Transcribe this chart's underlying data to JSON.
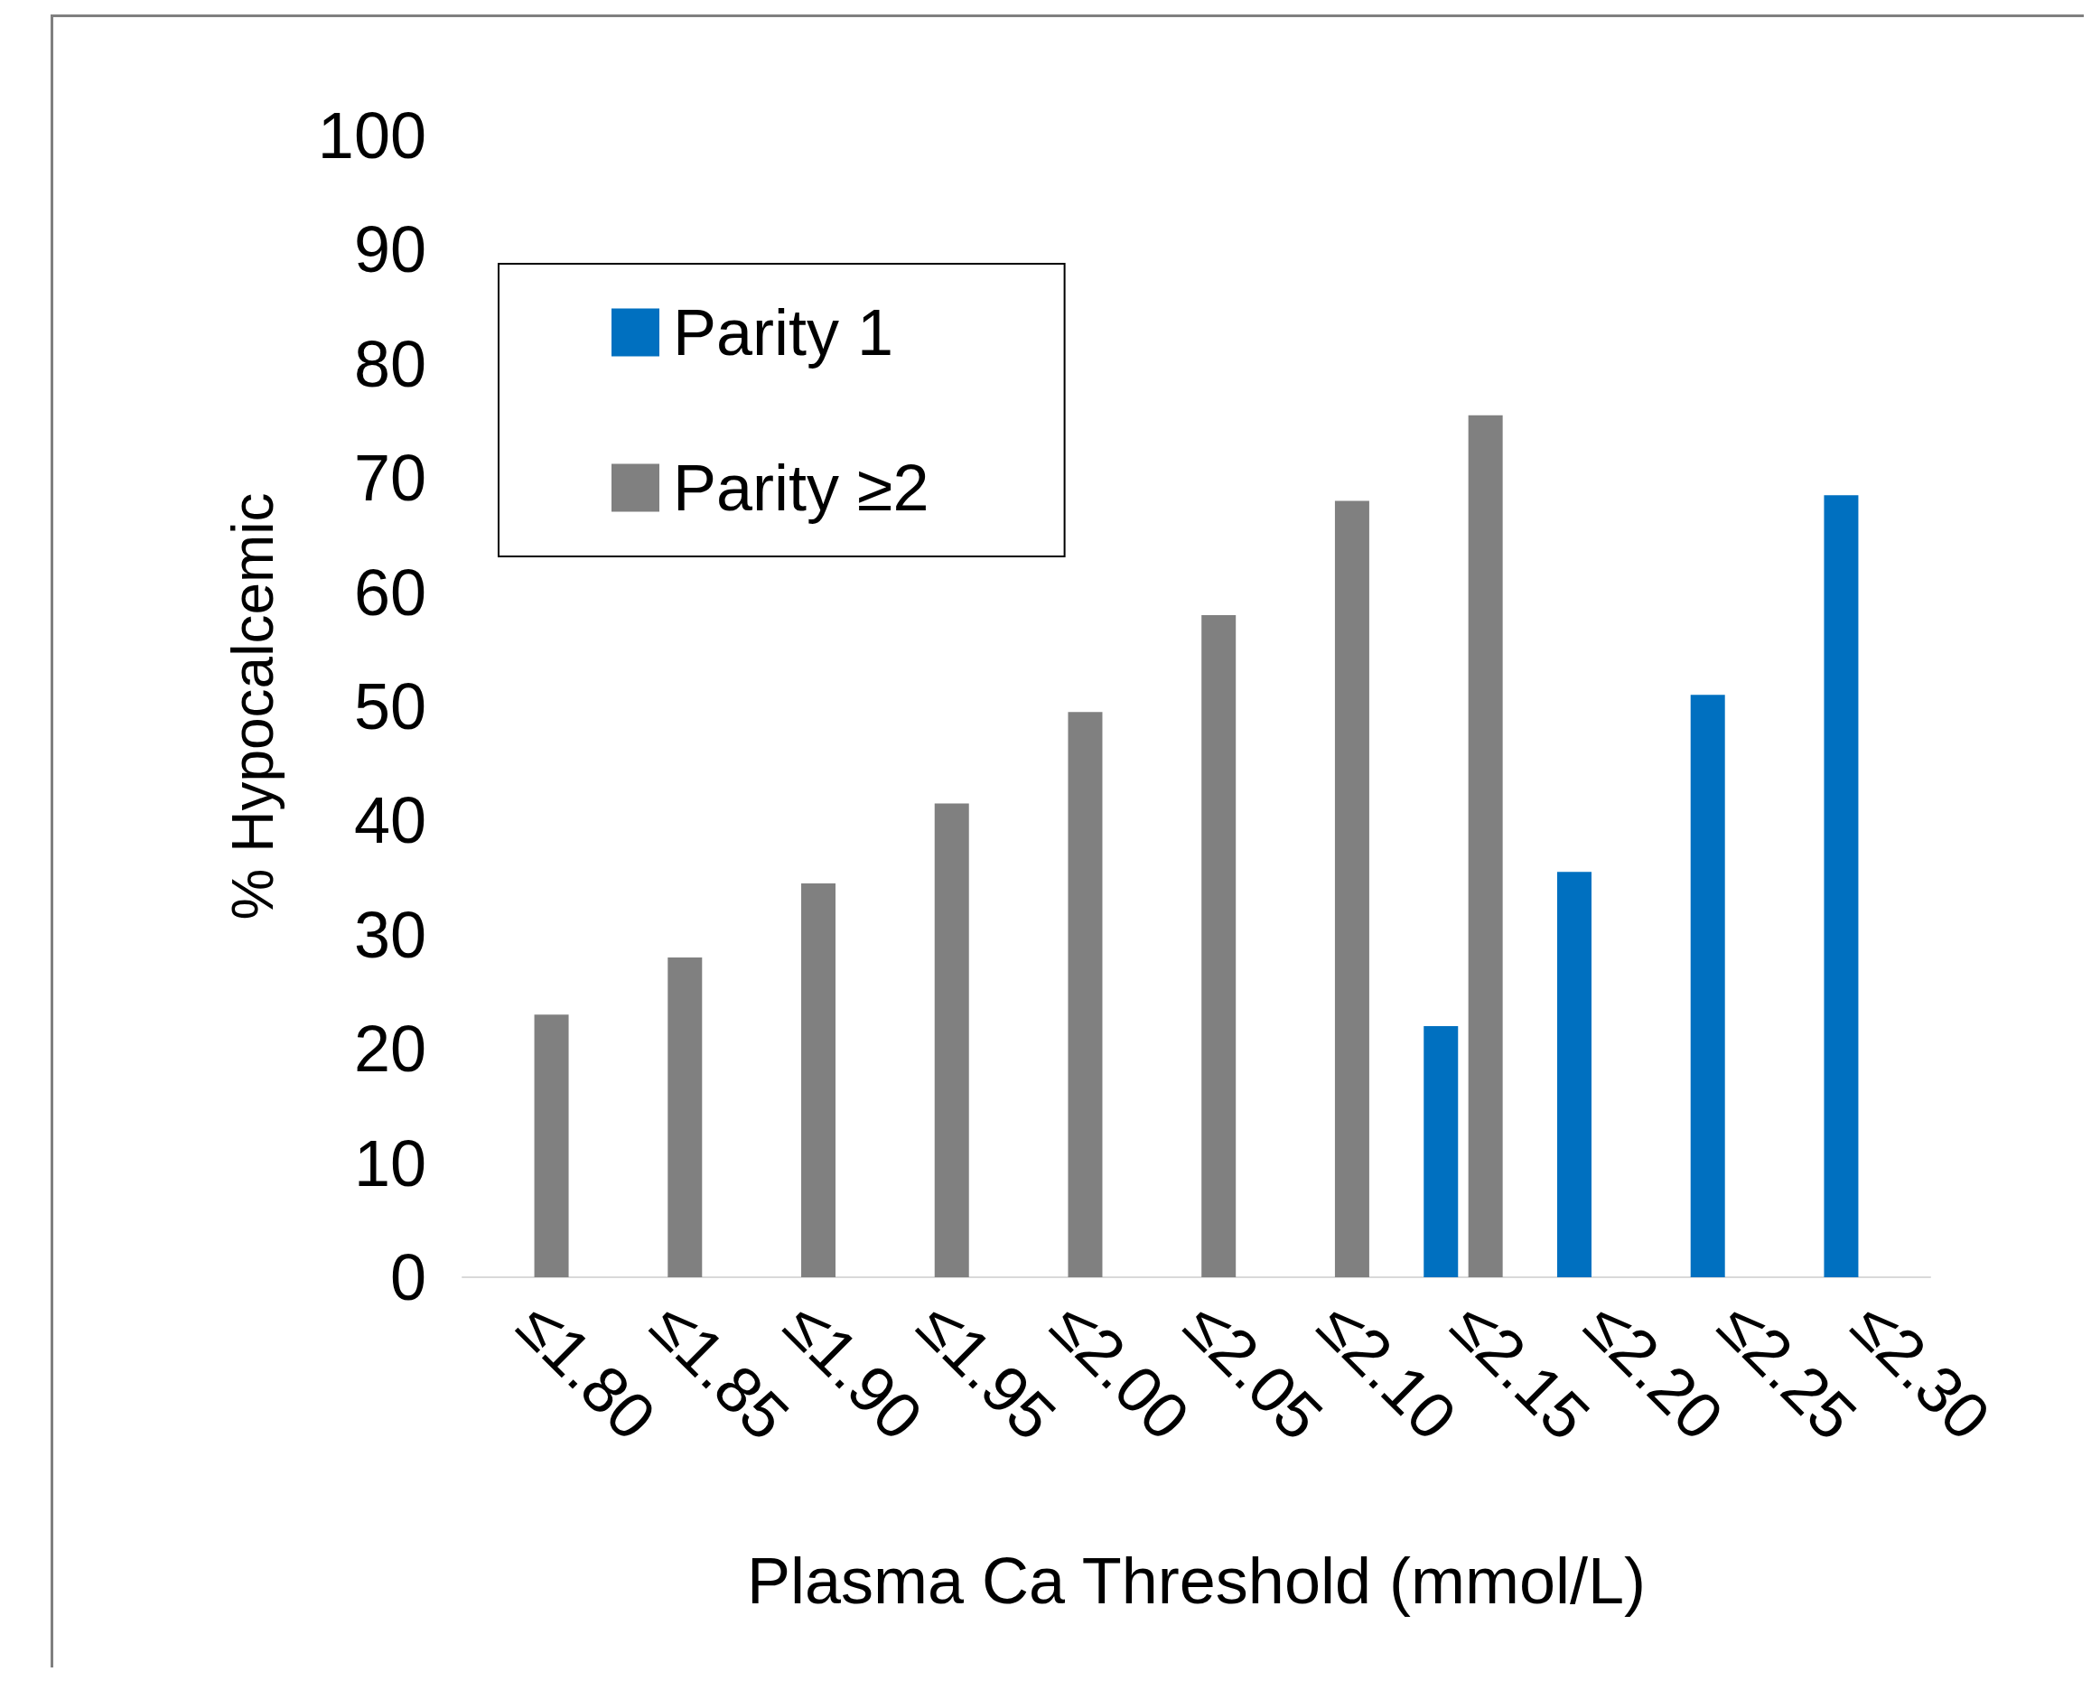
{
  "chart_data": {
    "type": "bar",
    "xlabel": "Plasma Ca Threshold (mmol/L)",
    "ylabel": "% Hypocalcemic",
    "categories": [
      "≤1.80",
      "≤1.85",
      "≤1.90",
      "≤1.95",
      "≤2.00",
      "≤2.05",
      "≤2.10",
      "≤2.15",
      "≤2.20",
      "≤2.25",
      "≤2.30"
    ],
    "series": [
      {
        "name": "Parity 1",
        "color": "#0070c0",
        "values": [
          null,
          null,
          null,
          null,
          null,
          null,
          null,
          22,
          35.5,
          51,
          68.5
        ]
      },
      {
        "name": "Parity ≥2",
        "color": "#808080",
        "values": [
          23,
          28,
          34.5,
          41.5,
          49.5,
          58,
          68,
          75.5,
          null,
          null,
          null
        ]
      }
    ],
    "ylim": [
      0,
      100
    ],
    "yticks": [
      0,
      10,
      20,
      30,
      40,
      50,
      60,
      70,
      80,
      90,
      100
    ],
    "grid": false,
    "legend": "top left"
  }
}
